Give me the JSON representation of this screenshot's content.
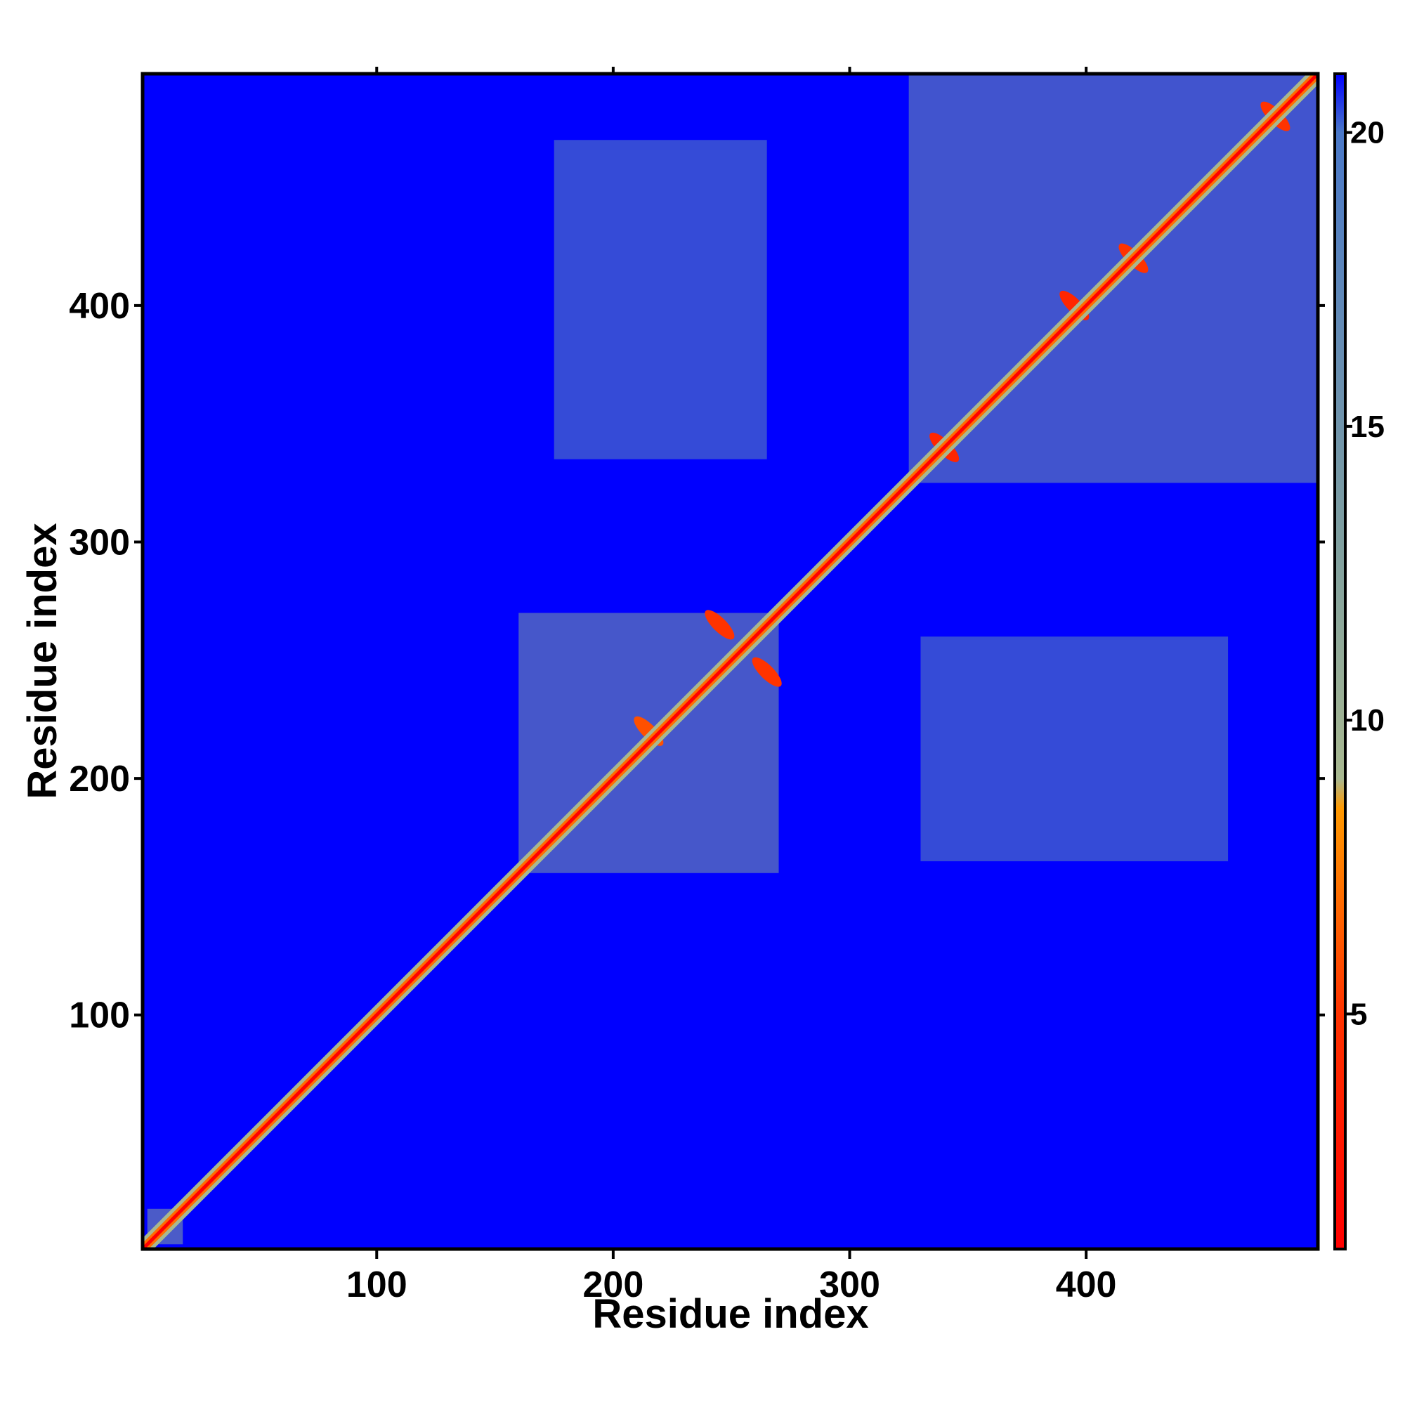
{
  "chart_data": {
    "type": "heatmap",
    "title": "",
    "xlabel": "Residue index",
    "ylabel": "Residue index",
    "xlim": [
      1,
      498
    ],
    "ylim": [
      1,
      498
    ],
    "x_ticks": [
      100,
      200,
      300,
      400
    ],
    "y_ticks": [
      100,
      200,
      300,
      400
    ],
    "colorbar": {
      "ticks": [
        5,
        10,
        15,
        20
      ],
      "range": [
        1,
        21
      ],
      "stops": [
        {
          "value": 1,
          "color": "#ff0000"
        },
        {
          "value": 5,
          "color": "#ff3300"
        },
        {
          "value": 8.5,
          "color": "#ff9900"
        },
        {
          "value": 9,
          "color": "#a8b890"
        },
        {
          "value": 13,
          "color": "#7f9f9f"
        },
        {
          "value": 20,
          "color": "#4a78c8"
        },
        {
          "value": 21,
          "color": "#0000ff"
        }
      ]
    },
    "background_color": "#0000ff",
    "contact_blocks": [
      {
        "x": [
          160,
          270
        ],
        "y": [
          160,
          270
        ],
        "value": 13
      },
      {
        "x": [
          325,
          498
        ],
        "y": [
          325,
          498
        ],
        "value": 14
      },
      {
        "x": [
          175,
          265
        ],
        "y": [
          335,
          470
        ],
        "value": 17
      },
      {
        "x": [
          330,
          460
        ],
        "y": [
          165,
          260
        ],
        "value": 17
      },
      {
        "x": [
          3,
          18
        ],
        "y": [
          3,
          18
        ],
        "value": 12
      }
    ],
    "dense_spots": [
      {
        "x": 340,
        "y": 340,
        "value": 4
      },
      {
        "x": 395,
        "y": 400,
        "value": 4
      },
      {
        "x": 420,
        "y": 420,
        "value": 5
      },
      {
        "x": 245,
        "y": 265,
        "value": 5
      },
      {
        "x": 265,
        "y": 245,
        "value": 5
      },
      {
        "x": 215,
        "y": 220,
        "value": 6
      },
      {
        "x": 480,
        "y": 480,
        "value": 5
      }
    ]
  }
}
